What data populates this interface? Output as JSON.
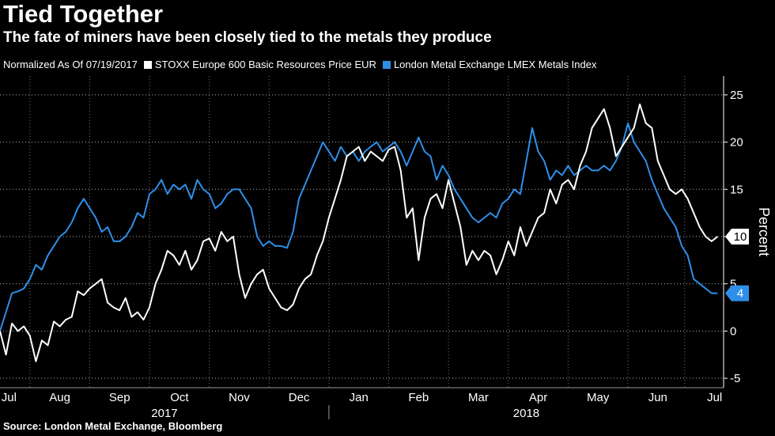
{
  "title": "Tied Together",
  "subtitle": "The fate of miners have been closely tied to the metals they produce",
  "legend": {
    "note": "Normalized As Of 07/19/2017",
    "series1": "STOXX Europe 600 Basic Resources Price EUR",
    "series2": "London Metal Exchange LMEX Metals Index"
  },
  "source": "Source: London Metal Exchange, Bloomberg",
  "colors": {
    "background": "#000000",
    "stoxx": "#ffffff",
    "lmex": "#2f8fe8",
    "grid": "#ffffff"
  },
  "chart_data": {
    "type": "line",
    "title": "Tied Together",
    "ylabel": "Percent",
    "ylim": [
      -6,
      27
    ],
    "yticks": [
      -5,
      0,
      5,
      10,
      15,
      20,
      25
    ],
    "yticklabels": [
      "-5",
      "0",
      "5",
      "10",
      "15",
      "20",
      "25"
    ],
    "xlim": [
      0,
      12.1
    ],
    "months": [
      {
        "label": "Jul",
        "pos": 0.15
      },
      {
        "label": "Aug",
        "pos": 1.0
      },
      {
        "label": "Sep",
        "pos": 2.0
      },
      {
        "label": "Oct",
        "pos": 3.0
      },
      {
        "label": "Nov",
        "pos": 4.0
      },
      {
        "label": "Dec",
        "pos": 5.0
      },
      {
        "label": "Jan",
        "pos": 6.0
      },
      {
        "label": "Feb",
        "pos": 7.0
      },
      {
        "label": "Mar",
        "pos": 8.0
      },
      {
        "label": "Apr",
        "pos": 9.0
      },
      {
        "label": "May",
        "pos": 10.0
      },
      {
        "label": "Jun",
        "pos": 11.0
      },
      {
        "label": "Jul",
        "pos": 11.95
      }
    ],
    "years": [
      {
        "label": "2017",
        "pos": 2.75
      },
      {
        "label": "2018",
        "pos": 8.8
      }
    ],
    "year_divider": 5.5,
    "series": [
      {
        "name": "STOXX Europe 600 Basic Resources Price EUR",
        "last_value": "10",
        "x": [
          0,
          0.1,
          0.2,
          0.3,
          0.4,
          0.5,
          0.6,
          0.7,
          0.8,
          0.9,
          1.0,
          1.1,
          1.2,
          1.3,
          1.4,
          1.5,
          1.6,
          1.7,
          1.8,
          1.9,
          2.0,
          2.1,
          2.2,
          2.3,
          2.4,
          2.5,
          2.6,
          2.7,
          2.8,
          2.9,
          3.0,
          3.1,
          3.2,
          3.3,
          3.4,
          3.5,
          3.6,
          3.7,
          3.8,
          3.9,
          4.0,
          4.1,
          4.2,
          4.3,
          4.4,
          4.5,
          4.6,
          4.7,
          4.8,
          4.9,
          5.0,
          5.1,
          5.2,
          5.3,
          5.4,
          5.5,
          5.6,
          5.7,
          5.8,
          5.9,
          6.0,
          6.1,
          6.2,
          6.3,
          6.4,
          6.5,
          6.6,
          6.7,
          6.8,
          6.9,
          7.0,
          7.1,
          7.2,
          7.3,
          7.4,
          7.5,
          7.6,
          7.7,
          7.8,
          7.9,
          8.0,
          8.1,
          8.2,
          8.3,
          8.4,
          8.5,
          8.6,
          8.7,
          8.8,
          8.9,
          9.0,
          9.1,
          9.2,
          9.3,
          9.4,
          9.5,
          9.6,
          9.7,
          9.8,
          9.9,
          10.0,
          10.1,
          10.2,
          10.3,
          10.4,
          10.5,
          10.6,
          10.7,
          10.8,
          10.9,
          11.0,
          11.1,
          11.2,
          11.3,
          11.4,
          11.5,
          11.6,
          11.7,
          11.8,
          11.9,
          12.0
        ],
        "values": [
          0,
          -2.5,
          0.8,
          0,
          0.5,
          -0.5,
          -3.2,
          -1,
          -1.5,
          1,
          0.5,
          1.2,
          1.5,
          4.2,
          3.8,
          4.5,
          5,
          5.5,
          3,
          2.5,
          2.2,
          3.5,
          1.5,
          2,
          1.2,
          2.5,
          5,
          6.5,
          8.5,
          8,
          7,
          8.5,
          6.5,
          7.5,
          9.5,
          9.8,
          8.5,
          10.5,
          9.5,
          10,
          6,
          3.5,
          5,
          6,
          6.5,
          4.5,
          3.5,
          2.5,
          2.2,
          2.8,
          4.5,
          5.5,
          6,
          8,
          9.5,
          12,
          14,
          16,
          18.5,
          19,
          19.5,
          18,
          19,
          18.5,
          18,
          19.2,
          19.5,
          17,
          12,
          13,
          7.5,
          12,
          14,
          14.5,
          13,
          16,
          13.5,
          11,
          7,
          8.5,
          7.5,
          8.5,
          8,
          6,
          7.5,
          9.5,
          8,
          11,
          9,
          10.5,
          12,
          12.5,
          15,
          13.5,
          15.5,
          16,
          15,
          17.5,
          19,
          21.5,
          22.5,
          23.5,
          21.5,
          18.5,
          19.5,
          20.5,
          21.5,
          24,
          22,
          21.5,
          18,
          16.5,
          15,
          14.5,
          15,
          14,
          12.5,
          11,
          10,
          9.5,
          10
        ]
      },
      {
        "name": "London Metal Exchange LMEX Metals Index",
        "last_value": "4",
        "x": [
          0,
          0.1,
          0.2,
          0.3,
          0.4,
          0.5,
          0.6,
          0.7,
          0.8,
          0.9,
          1.0,
          1.1,
          1.2,
          1.3,
          1.4,
          1.5,
          1.6,
          1.7,
          1.8,
          1.9,
          2.0,
          2.1,
          2.2,
          2.3,
          2.4,
          2.5,
          2.6,
          2.7,
          2.8,
          2.9,
          3.0,
          3.1,
          3.2,
          3.3,
          3.4,
          3.5,
          3.6,
          3.7,
          3.8,
          3.9,
          4.0,
          4.1,
          4.2,
          4.3,
          4.4,
          4.5,
          4.6,
          4.7,
          4.8,
          4.9,
          5.0,
          5.1,
          5.2,
          5.3,
          5.4,
          5.5,
          5.6,
          5.7,
          5.8,
          5.9,
          6.0,
          6.1,
          6.2,
          6.3,
          6.4,
          6.5,
          6.6,
          6.7,
          6.8,
          6.9,
          7.0,
          7.1,
          7.2,
          7.3,
          7.4,
          7.5,
          7.6,
          7.7,
          7.8,
          7.9,
          8.0,
          8.1,
          8.2,
          8.3,
          8.4,
          8.5,
          8.6,
          8.7,
          8.8,
          8.9,
          9.0,
          9.1,
          9.2,
          9.3,
          9.4,
          9.5,
          9.6,
          9.7,
          9.8,
          9.9,
          10.0,
          10.1,
          10.2,
          10.3,
          10.4,
          10.5,
          10.6,
          10.7,
          10.8,
          10.9,
          11.0,
          11.1,
          11.2,
          11.3,
          11.4,
          11.5,
          11.6,
          11.7,
          11.8,
          11.9,
          12.0
        ],
        "values": [
          0,
          2,
          4,
          4.2,
          4.5,
          5.5,
          7,
          6.5,
          8,
          9,
          10,
          10.5,
          11.5,
          13,
          14,
          13,
          12,
          10.5,
          11,
          9.5,
          9.5,
          10,
          11,
          12.5,
          12,
          14.5,
          15,
          16,
          14.5,
          15.5,
          15,
          15.5,
          14,
          16,
          15,
          14.5,
          13,
          13.5,
          14.5,
          15,
          15,
          14,
          13,
          10,
          9,
          9.5,
          9,
          9,
          8.8,
          10.5,
          14,
          15.5,
          17,
          18.5,
          20,
          19,
          18,
          19.5,
          18.5,
          19,
          18,
          19,
          19.5,
          20,
          19,
          19.5,
          20,
          19,
          17.5,
          19,
          20.5,
          19,
          18.5,
          16,
          17.5,
          16.5,
          15,
          14,
          13,
          12,
          11.5,
          12,
          12.5,
          12,
          13.5,
          14,
          15,
          14.5,
          18,
          21.5,
          19,
          18,
          16,
          17,
          16.5,
          17.5,
          16.5,
          17,
          17.5,
          17,
          17,
          17.5,
          17,
          18,
          19.5,
          22,
          20,
          19,
          18,
          16,
          14.5,
          13,
          12,
          11,
          9,
          8,
          5.5,
          5,
          4.5,
          4,
          4
        ]
      }
    ]
  }
}
